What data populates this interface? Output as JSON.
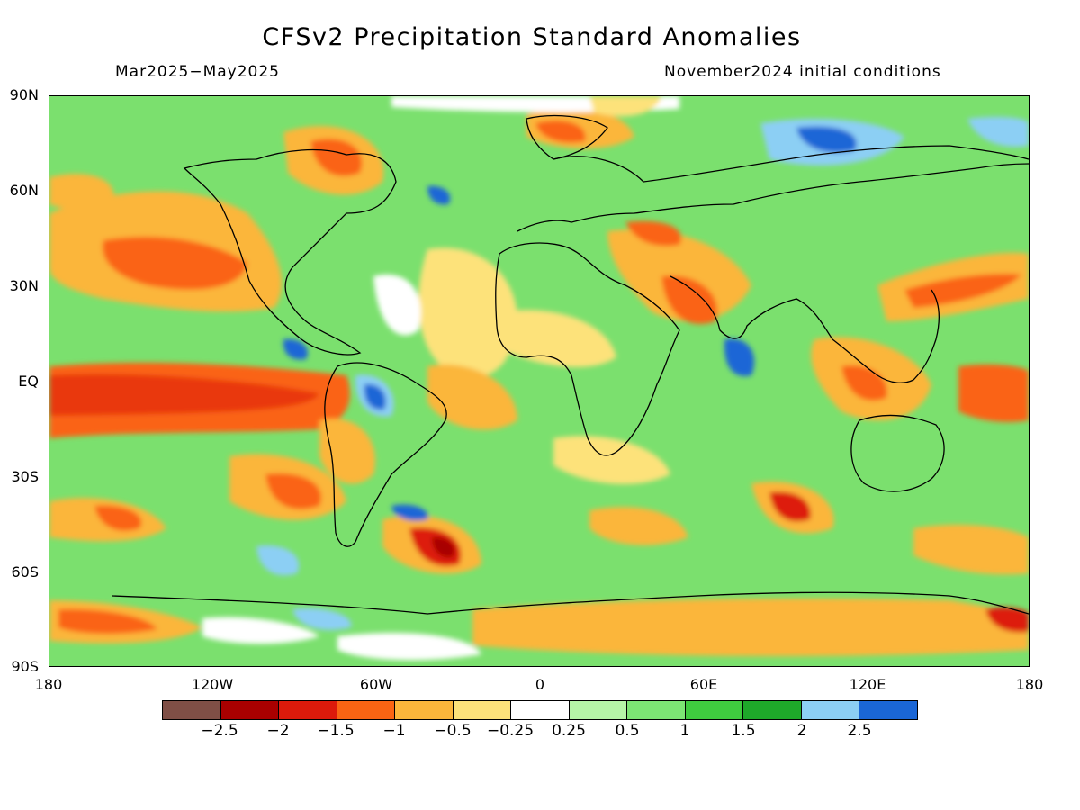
{
  "title": "CFSv2 Precipitation Standard Anomalies",
  "subtitle_left": "Mar2025−May2025",
  "subtitle_right": "November2024 initial conditions",
  "lat_labels": [
    "90N",
    "60N",
    "30N",
    "EQ",
    "30S",
    "60S",
    "90S"
  ],
  "lon_labels": [
    "180",
    "120W",
    "60W",
    "0",
    "60E",
    "120E",
    "180"
  ],
  "colorbar": {
    "colors": [
      "#7f4f46",
      "#a80000",
      "#dd1a0b",
      "#fa6413",
      "#fbb63b",
      "#fde27a",
      "#ffffff",
      "#b5f6a7",
      "#7ce574",
      "#3fcb3f",
      "#1ea82a",
      "#8ccff4",
      "#1a66d6"
    ],
    "tick_labels": [
      "−2.5",
      "−2",
      "−1.5",
      "−1",
      "−0.5",
      "−0.25",
      "0.25",
      "0.5",
      "1",
      "1.5",
      "2",
      "2.5"
    ]
  }
}
